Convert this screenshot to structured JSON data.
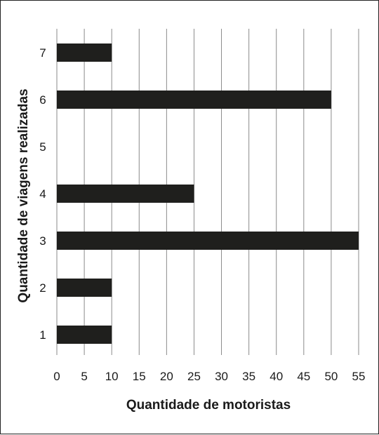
{
  "chart_data": {
    "type": "bar",
    "orientation": "horizontal",
    "categories": [
      "1",
      "2",
      "3",
      "4",
      "5",
      "6",
      "7"
    ],
    "values": [
      10,
      10,
      55,
      25,
      0,
      50,
      10
    ],
    "xlabel": "Quantidade de motoristas",
    "ylabel": "Quantidade de viagens realizadas",
    "xlim": [
      0,
      55
    ],
    "xticks": [
      "0",
      "5",
      "10",
      "15",
      "20",
      "25",
      "30",
      "35",
      "40",
      "45",
      "50",
      "55"
    ],
    "grid": "vertical",
    "bar_color": "#1f1f1d",
    "grid_color": "#8a8a8a"
  }
}
